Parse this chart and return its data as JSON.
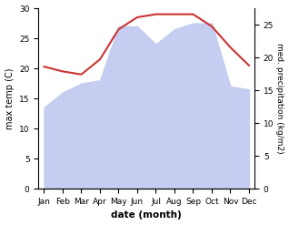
{
  "months": [
    "Jan",
    "Feb",
    "Mar",
    "Apr",
    "May",
    "Jun",
    "Jul",
    "Aug",
    "Sep",
    "Oct",
    "Nov",
    "Dec"
  ],
  "temperature": [
    20.3,
    19.5,
    19.0,
    21.5,
    26.5,
    28.5,
    29.0,
    29.0,
    29.0,
    27.0,
    23.5,
    20.5
  ],
  "precipitation": [
    13.5,
    16.0,
    17.5,
    18.0,
    27.0,
    27.0,
    24.0,
    26.5,
    27.5,
    27.5,
    17.0,
    16.5
  ],
  "temp_color": "#cc3333",
  "precip_color": "#c5cef0",
  "left_ylim": [
    0,
    30
  ],
  "right_ylim": [
    0,
    27.5
  ],
  "left_yticks": [
    0,
    5,
    10,
    15,
    20,
    25,
    30
  ],
  "right_yticks": [
    0,
    5,
    10,
    15,
    20,
    25
  ],
  "right_yticklabels": [
    "0",
    "5",
    "10",
    "15",
    "20",
    "25"
  ],
  "xlabel": "date (month)",
  "ylabel_left": "max temp (C)",
  "ylabel_right": "med. precipitation (kg/m2)",
  "bg_color": "#ffffff"
}
